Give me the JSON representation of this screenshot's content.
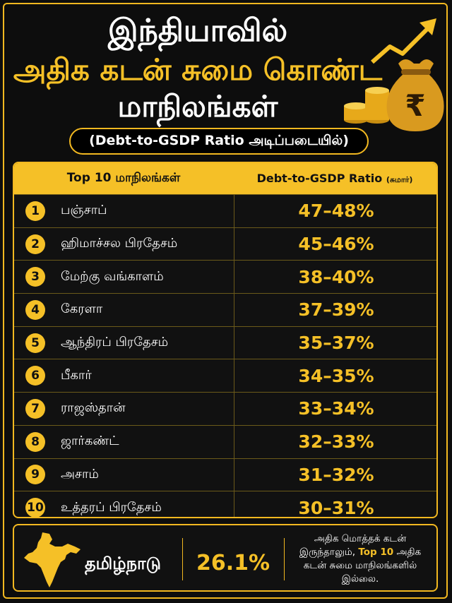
{
  "header": {
    "line1": "இந்தியாவில்",
    "line2": "அதிக கடன் சுமை கொண்ட",
    "line3": "மாநிலங்கள்",
    "subtitle": "(Debt-to-GSDP Ratio அடிப்படையில்)",
    "currency_symbol": "₹"
  },
  "table": {
    "col1": "Top 10 மாநிலங்கள்",
    "col2": "Debt-to-GSDP Ratio",
    "col2_note": "(சுமார்)",
    "rows": [
      {
        "rank": "1",
        "state": "பஞ்சாப்",
        "ratio": "47–48%"
      },
      {
        "rank": "2",
        "state": "ஹிமாச்சல பிரதேசம்",
        "ratio": "45–46%"
      },
      {
        "rank": "3",
        "state": "மேற்கு வங்காளம்",
        "ratio": "38–40%"
      },
      {
        "rank": "4",
        "state": "கேரளா",
        "ratio": "37–39%"
      },
      {
        "rank": "5",
        "state": "ஆந்திரப் பிரதேசம்",
        "ratio": "35–37%"
      },
      {
        "rank": "6",
        "state": "பீகார்",
        "ratio": "34–35%"
      },
      {
        "rank": "7",
        "state": "ராஜஸ்தான்",
        "ratio": "33–34%"
      },
      {
        "rank": "8",
        "state": "ஜார்கண்ட்",
        "ratio": "32–33%"
      },
      {
        "rank": "9",
        "state": "அசாம்",
        "ratio": "31–32%"
      },
      {
        "rank": "10",
        "state": "உத்தரப் பிரதேசம்",
        "ratio": "30–31%"
      }
    ]
  },
  "footer": {
    "state": "தமிழ்நாடு",
    "ratio": "26.1%",
    "note_pre": "அதிக மொத்தக் கடன் இருந்தாலும்,",
    "note_highlight": "Top 10",
    "note_post": "அதிக கடன் சுமை மாநிலங்களில் இல்லை."
  },
  "colors": {
    "accent": "#f5c027",
    "background": "#0d0d0d"
  }
}
